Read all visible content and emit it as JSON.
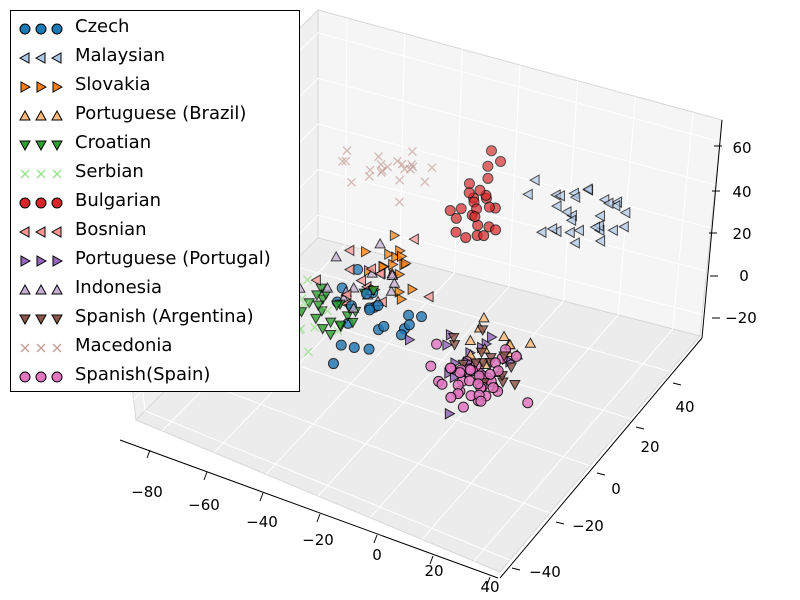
{
  "chart_data": {
    "type": "scatter",
    "projection": "3d",
    "title": "",
    "xlabel": "",
    "ylabel": "",
    "zlabel": "",
    "grid": true,
    "legend_position": "upper-left",
    "x_ticks": [
      "−80",
      "−60",
      "−40",
      "−20",
      "0",
      "20",
      "40"
    ],
    "y_ticks": [
      "−40",
      "−20",
      "0",
      "20",
      "40"
    ],
    "z_ticks": [
      "−20",
      "0",
      "20",
      "40",
      "60"
    ],
    "xlim": [
      -90,
      50
    ],
    "ylim": [
      -45,
      55
    ],
    "zlim": [
      -30,
      70
    ],
    "series": [
      {
        "name": "Czech",
        "marker": "circle",
        "color": "#1f77b4",
        "center": [
          -38,
          8,
          -8
        ],
        "spread": [
          9,
          6,
          7
        ],
        "n": 22
      },
      {
        "name": "Malaysian",
        "marker": "triangle-left",
        "color": "#aec7e8",
        "center": [
          15,
          38,
          25
        ],
        "spread": [
          9,
          5,
          6
        ],
        "n": 30
      },
      {
        "name": "Slovakia",
        "marker": "triangle-right",
        "color": "#ff7f0e",
        "center": [
          -38,
          18,
          0
        ],
        "spread": [
          5,
          4,
          5
        ],
        "n": 18
      },
      {
        "name": "Portuguese (Brazil)",
        "marker": "triangle-up",
        "color": "#ffbb78",
        "center": [
          24,
          -12,
          5
        ],
        "spread": [
          6,
          4,
          4
        ],
        "n": 14
      },
      {
        "name": "Croatian",
        "marker": "triangle-down",
        "color": "#2ca02c",
        "center": [
          -50,
          4,
          -6
        ],
        "spread": [
          7,
          5,
          5
        ],
        "n": 22
      },
      {
        "name": "Serbian",
        "marker": "x",
        "color": "#98df8a",
        "center": [
          -58,
          0,
          -8
        ],
        "spread": [
          8,
          5,
          5
        ],
        "n": 14
      },
      {
        "name": "Bulgarian",
        "marker": "circle",
        "color": "#d62728",
        "center": [
          -25,
          45,
          10
        ],
        "spread": [
          4,
          4,
          9
        ],
        "n": 26
      },
      {
        "name": "Bosnian",
        "marker": "triangle-left",
        "color": "#ff9896",
        "center": [
          -42,
          12,
          0
        ],
        "spread": [
          8,
          5,
          6
        ],
        "n": 14
      },
      {
        "name": "Portuguese (Portugal)",
        "marker": "triangle-right",
        "color": "#9467bd",
        "center": [
          20,
          -18,
          4
        ],
        "spread": [
          6,
          4,
          4
        ],
        "n": 16
      },
      {
        "name": "Indonesia",
        "marker": "triangle-up",
        "color": "#c5b0d5",
        "center": [
          -40,
          10,
          0
        ],
        "spread": [
          10,
          6,
          6
        ],
        "n": 16
      },
      {
        "name": "Spanish (Argentina)",
        "marker": "triangle-down",
        "color": "#8c564b",
        "center": [
          24,
          -18,
          3
        ],
        "spread": [
          6,
          4,
          4
        ],
        "n": 16
      },
      {
        "name": "Macedonia",
        "marker": "x",
        "color": "#c49c94",
        "center": [
          -55,
          38,
          25
        ],
        "spread": [
          8,
          4,
          3
        ],
        "n": 22
      },
      {
        "name": "Spanish(Spain)",
        "marker": "circle",
        "color": "#e377c2",
        "center": [
          22,
          -24,
          2
        ],
        "spread": [
          7,
          5,
          4
        ],
        "n": 45
      }
    ]
  }
}
